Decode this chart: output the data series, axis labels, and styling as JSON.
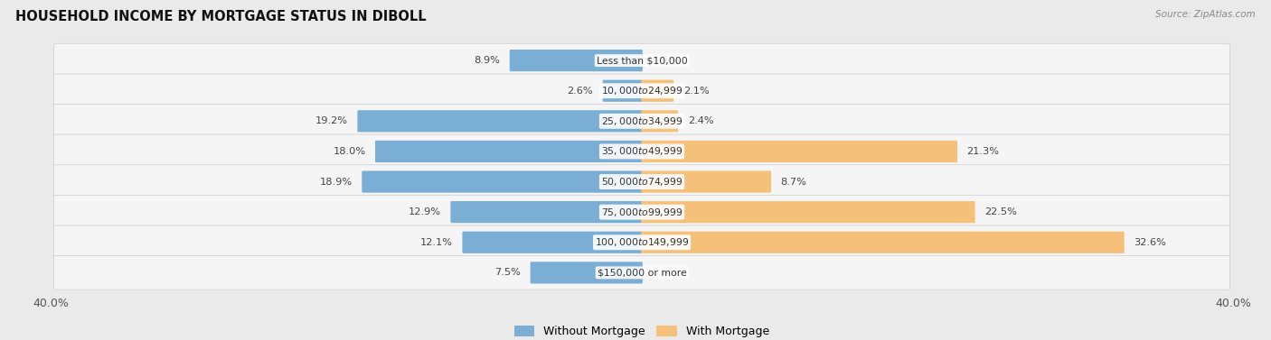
{
  "title": "HOUSEHOLD INCOME BY MORTGAGE STATUS IN DIBOLL",
  "source": "Source: ZipAtlas.com",
  "categories": [
    "Less than $10,000",
    "$10,000 to $24,999",
    "$25,000 to $34,999",
    "$35,000 to $49,999",
    "$50,000 to $74,999",
    "$75,000 to $99,999",
    "$100,000 to $149,999",
    "$150,000 or more"
  ],
  "without_mortgage": [
    8.9,
    2.6,
    19.2,
    18.0,
    18.9,
    12.9,
    12.1,
    7.5
  ],
  "with_mortgage": [
    0.0,
    2.1,
    2.4,
    21.3,
    8.7,
    22.5,
    32.6,
    0.0
  ],
  "color_without": "#7aaed4",
  "color_with": "#f5c07a",
  "axis_limit": 40.0,
  "background_color": "#eaeaea",
  "row_bg_light": "#f5f5f5",
  "legend_label_without": "Without Mortgage",
  "legend_label_with": "With Mortgage"
}
